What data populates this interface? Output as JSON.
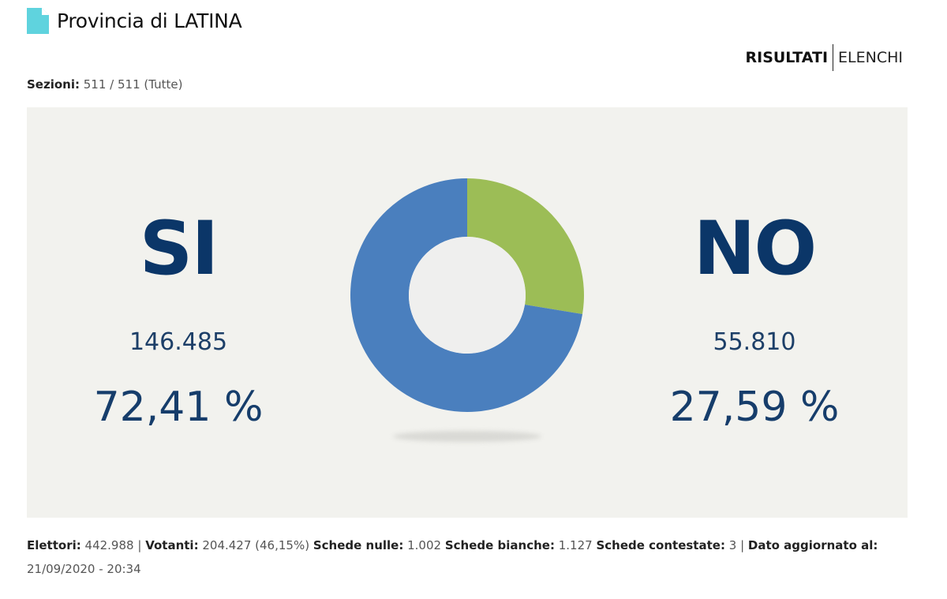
{
  "header": {
    "title": "Provincia di LATINA",
    "icon": "document-icon",
    "icon_color": "#5fd3de"
  },
  "view_switch": {
    "active": "RISULTATI",
    "other": "ELENCHI"
  },
  "sezioni": {
    "label": "Sezioni:",
    "value": "511 / 511 (Tutte)"
  },
  "results": {
    "si": {
      "label": "SI",
      "votes": "146.485",
      "pct": "72,41 %"
    },
    "no": {
      "label": "NO",
      "votes": "55.810",
      "pct": "27,59 %"
    }
  },
  "colors": {
    "si": "#4a7fbe",
    "no": "#9cbd56",
    "hole": "#efefee",
    "panel": "#f2f2ee",
    "text_dark_blue": "#0b3668"
  },
  "chart_data": {
    "type": "pie",
    "subtype": "donut",
    "title": "",
    "categories": [
      "SI",
      "NO"
    ],
    "values": [
      146485,
      55810
    ],
    "percentages": [
      72.41,
      27.59
    ],
    "colors": [
      "#4a7fbe",
      "#9cbd56"
    ],
    "start_angle_deg": 0,
    "direction": "clockwise_from_top_NO_first",
    "legend": "none"
  },
  "footer": {
    "elettori_label": "Elettori:",
    "elettori_value": "442.988",
    "sep1": "|",
    "votanti_label": "Votanti:",
    "votanti_value": "204.427 (46,15%)",
    "nulle_label": "Schede nulle:",
    "nulle_value": "1.002",
    "bianche_label": "Schede bianche:",
    "bianche_value": "1.127",
    "contestate_label": "Schede contestate:",
    "contestate_value": "3",
    "sep2": "|",
    "aggiornato_label": "Dato aggiornato al:",
    "aggiornato_value": "21/09/2020 - 20:34"
  }
}
